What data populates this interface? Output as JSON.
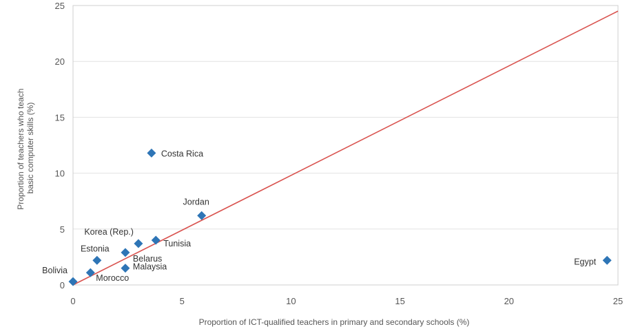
{
  "chart_data": {
    "type": "scatter",
    "xlabel": "Proportion of ICT-qualified teachers in primary and secondary schools (%)",
    "ylabel_lines": [
      "Proportion of teachers who teach",
      "basic computer skills (%)"
    ],
    "xlim": [
      0,
      25
    ],
    "ylim": [
      0,
      25
    ],
    "x_ticks": [
      0,
      5,
      10,
      15,
      20,
      25
    ],
    "y_ticks": [
      0,
      5,
      10,
      15,
      20,
      25
    ],
    "grid": "horizontal",
    "points": [
      {
        "label": "Bolivia",
        "x": 0.0,
        "y": 0.3
      },
      {
        "label": "Morocco",
        "x": 0.8,
        "y": 1.1
      },
      {
        "label": "Estonia",
        "x": 1.1,
        "y": 2.2
      },
      {
        "label": "Malaysia",
        "x": 2.4,
        "y": 1.5
      },
      {
        "label": "Belarus",
        "x": 2.4,
        "y": 2.9
      },
      {
        "label": "Korea (Rep.)",
        "x": 3.0,
        "y": 3.7
      },
      {
        "label": "Tunisia",
        "x": 3.8,
        "y": 4.0
      },
      {
        "label": "Costa Rica",
        "x": 3.6,
        "y": 11.8
      },
      {
        "label": "Jordan",
        "x": 5.9,
        "y": 6.2
      },
      {
        "label": "Egypt",
        "x": 24.5,
        "y": 2.2
      }
    ],
    "trendline": {
      "x": [
        0,
        25
      ],
      "y": [
        0,
        24.5
      ]
    },
    "marker_color": "#2e75b6",
    "trendline_color": "#d9534f"
  }
}
